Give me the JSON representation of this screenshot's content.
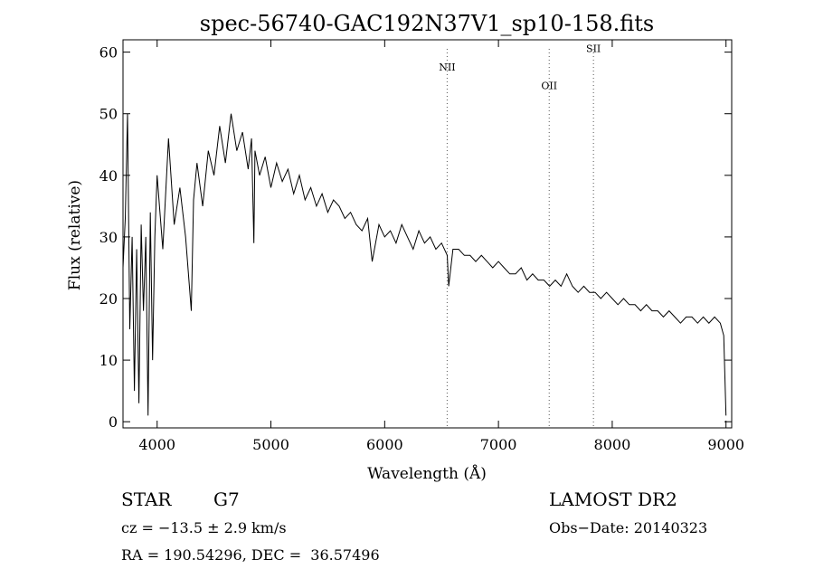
{
  "chart_data": {
    "type": "line",
    "title": "spec-56740-GAC192N37V1_sp10-158.fits",
    "xlabel": "Wavelength (Å)",
    "ylabel": "Flux (relative)",
    "xlim": [
      3700,
      9050
    ],
    "ylim": [
      -1,
      62
    ],
    "xticks": [
      4000,
      5000,
      6000,
      7000,
      8000,
      9000
    ],
    "yticks": [
      0,
      10,
      20,
      30,
      40,
      50,
      60
    ],
    "grid": false,
    "line_color": "#000000",
    "series": [
      {
        "x": [
          3700,
          3720,
          3740,
          3760,
          3780,
          3800,
          3820,
          3840,
          3860,
          3880,
          3900,
          3920,
          3940,
          3960,
          3980,
          4000,
          4050,
          4100,
          4150,
          4200,
          4250,
          4300,
          4320,
          4350,
          4400,
          4450,
          4500,
          4550,
          4600,
          4650,
          4700,
          4750,
          4800,
          4830,
          4850,
          4860,
          4900,
          4950,
          5000,
          5050,
          5100,
          5150,
          5200,
          5250,
          5300,
          5350,
          5400,
          5450,
          5500,
          5550,
          5600,
          5650,
          5700,
          5750,
          5800,
          5850,
          5890,
          5950,
          6000,
          6050,
          6100,
          6150,
          6200,
          6250,
          6300,
          6350,
          6400,
          6450,
          6500,
          6550,
          6563,
          6600,
          6650,
          6700,
          6750,
          6800,
          6850,
          6900,
          6950,
          7000,
          7050,
          7100,
          7150,
          7200,
          7250,
          7300,
          7350,
          7400,
          7450,
          7500,
          7550,
          7600,
          7650,
          7700,
          7750,
          7800,
          7850,
          7900,
          7950,
          8000,
          8050,
          8100,
          8150,
          8200,
          8250,
          8300,
          8350,
          8400,
          8450,
          8500,
          8550,
          8600,
          8650,
          8700,
          8750,
          8800,
          8850,
          8900,
          8950,
          8980,
          9000
        ],
        "y": [
          25,
          33,
          50,
          15,
          30,
          5,
          28,
          3,
          32,
          18,
          30,
          1,
          34,
          10,
          30,
          40,
          28,
          46,
          32,
          38,
          30,
          18,
          36,
          42,
          35,
          44,
          40,
          48,
          42,
          50,
          44,
          47,
          41,
          46,
          29,
          44,
          40,
          43,
          38,
          42,
          39,
          41,
          37,
          40,
          36,
          38,
          35,
          37,
          34,
          36,
          35,
          33,
          34,
          32,
          31,
          33,
          26,
          32,
          30,
          31,
          29,
          32,
          30,
          28,
          31,
          29,
          30,
          28,
          29,
          27,
          22,
          28,
          28,
          27,
          27,
          26,
          27,
          26,
          25,
          26,
          25,
          24,
          24,
          25,
          23,
          24,
          23,
          23,
          22,
          23,
          22,
          24,
          22,
          21,
          22,
          21,
          21,
          20,
          21,
          20,
          19,
          20,
          19,
          19,
          18,
          19,
          18,
          18,
          17,
          18,
          17,
          16,
          17,
          17,
          16,
          17,
          16,
          17,
          16,
          14,
          1
        ]
      }
    ],
    "lines": [
      {
        "label": "NII",
        "x": 6549
      },
      {
        "label": "OII",
        "x": 7446
      },
      {
        "label": "SII",
        "x": 7835
      }
    ],
    "line_label_y": [
      57,
      54,
      60
    ]
  },
  "info": {
    "object_type": "STAR",
    "subclass": "G7",
    "survey": "LAMOST DR2",
    "cz": "cz = −13.5 ± 2.9 km/s",
    "obs_date": "Obs−Date: 20140323",
    "coords": "RA = 190.54296, DEC =  36.57496"
  }
}
